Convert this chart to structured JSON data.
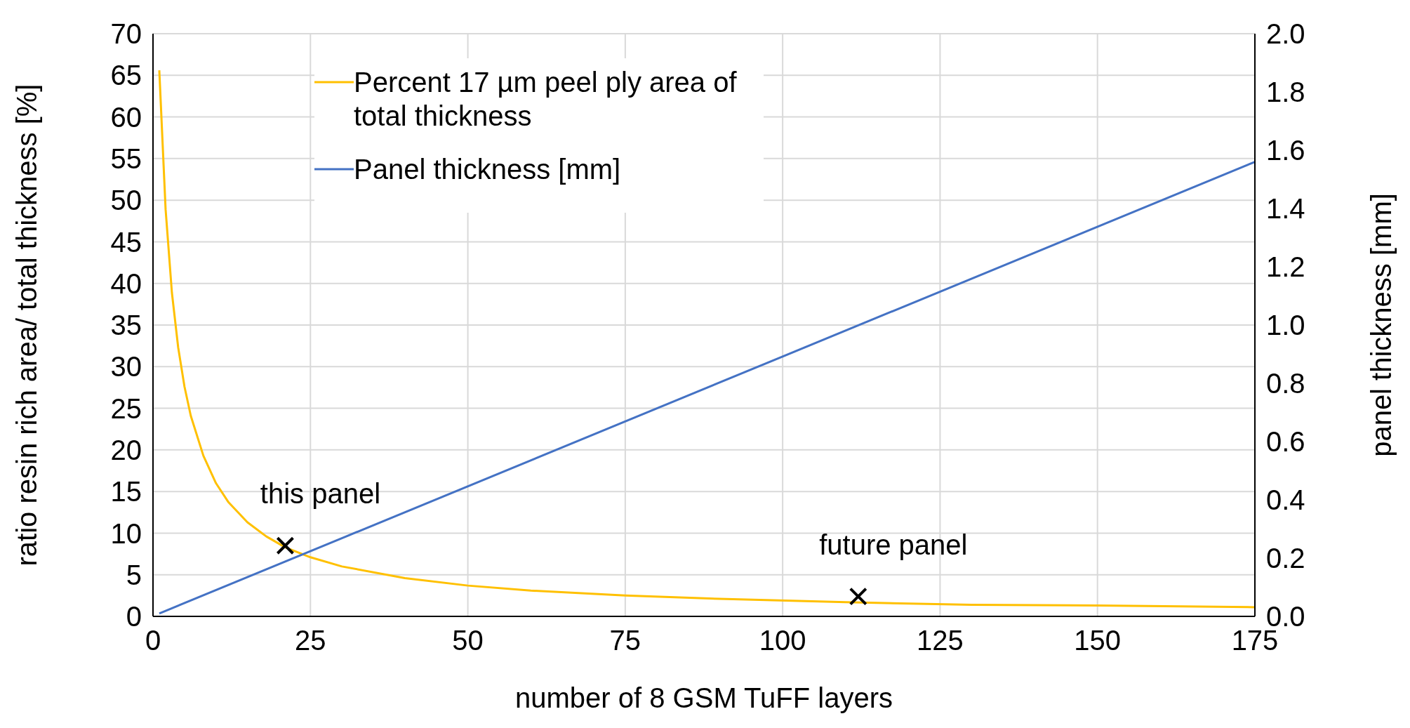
{
  "chart_data": {
    "type": "line",
    "xlabel": "number of 8 GSM TuFF layers",
    "ylabel": "ratio resin rich area/ total thickness  [%]",
    "y2label": "panel thickness [mm]",
    "xlim": [
      0,
      175
    ],
    "xticks": [
      0,
      25,
      50,
      75,
      100,
      125,
      150,
      175
    ],
    "ylim": [
      0,
      70
    ],
    "yticks": [
      0,
      5,
      10,
      15,
      20,
      25,
      30,
      35,
      40,
      45,
      50,
      55,
      60,
      65,
      70
    ],
    "y2lim": [
      0,
      2
    ],
    "y2ticks": [
      {
        "value": 0,
        "label": "0.0"
      },
      0.2,
      0.4,
      0.6,
      0.8,
      {
        "value": 1,
        "label": "1.0"
      },
      1.2,
      1.4,
      1.6,
      1.8,
      {
        "value": 2,
        "label": "2.0"
      }
    ],
    "grid": true,
    "legend": "top left",
    "marker": "none",
    "line_style": "solid",
    "series": [
      {
        "name": "Percent 17 µm peel ply area of total thickness",
        "color": "#ffc000",
        "x": [
          1,
          2,
          3,
          4,
          5,
          6,
          8,
          10,
          12,
          15,
          18,
          21,
          25,
          30,
          40,
          50,
          60,
          75,
          90,
          110,
          130,
          150,
          175
        ],
        "values": [
          65.6,
          48.9,
          38.9,
          32.3,
          27.6,
          24.1,
          19.3,
          16.0,
          13.7,
          11.3,
          9.6,
          8.3,
          7.1,
          6.0,
          4.6,
          3.7,
          3.1,
          2.5,
          2.1,
          1.7,
          1.4,
          1.3,
          1.1
        ]
      },
      {
        "name": "Panel thickness [mm]",
        "color": "#4472c4",
        "axis": "y2",
        "x": [
          1,
          175
        ],
        "values": [
          0.01,
          1.56
        ]
      },
      {
        "type": "scatter",
        "marker": "cross",
        "color": "#000000",
        "x": [
          21,
          112
        ],
        "values": [
          8.5,
          2.4
        ]
      }
    ],
    "annotations": [
      {
        "text": "this panel",
        "x": 21,
        "y": 8.5
      },
      {
        "text": "future panel",
        "x": 112,
        "y": 2.4
      }
    ]
  }
}
